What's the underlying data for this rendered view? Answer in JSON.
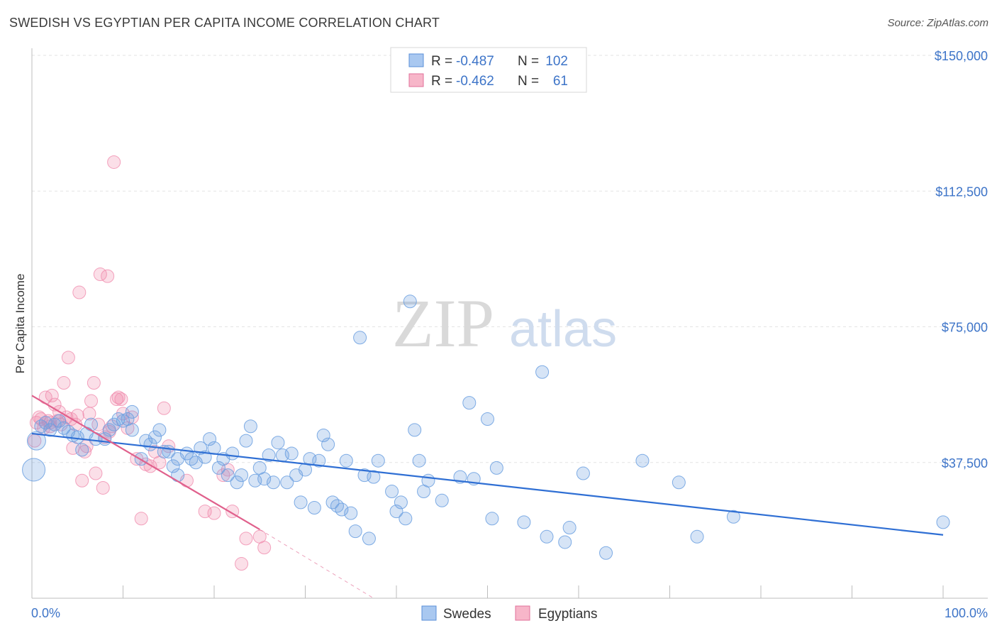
{
  "header": {
    "title": "SWEDISH VS EGYPTIAN PER CAPITA INCOME CORRELATION CHART",
    "source": "Source: ZipAtlas.com"
  },
  "watermark": {
    "zip": "ZIP",
    "atlas": "atlas"
  },
  "legend": {
    "rows": [
      {
        "r_label": "R = ",
        "r_value": "-0.487",
        "n_label": "N = ",
        "n_value": "102",
        "color": "#a9c8f0",
        "stroke": "#5a8fd8"
      },
      {
        "r_label": "R = ",
        "r_value": "-0.462",
        "n_label": "N = ",
        "n_value": "61",
        "color": "#f7b6c9",
        "stroke": "#e0709a"
      }
    ]
  },
  "colors": {
    "swedes": "#6a9fe0",
    "swedes_line": "#2f6fd4",
    "egyptians": "#f08cae",
    "egyptians_line": "#e0608c",
    "grid": "#e3e3e3",
    "axis_text": "#3d74c8"
  },
  "chart_data": {
    "type": "scatter",
    "title": "SWEDISH VS EGYPTIAN PER CAPITA INCOME CORRELATION CHART",
    "xlabel": "",
    "ylabel": "Per Capita Income",
    "xlim": [
      0,
      100
    ],
    "ylim": [
      0,
      150000
    ],
    "x_tick_labels": [
      "0.0%",
      "100.0%"
    ],
    "y_ticks": [
      37500,
      75000,
      112500,
      150000
    ],
    "y_tick_labels": [
      "$37,500",
      "$75,000",
      "$112,500",
      "$150,000"
    ],
    "grid": true,
    "legend_position": "top-center",
    "series": [
      {
        "name": "Swedes",
        "r": -0.487,
        "n": 102,
        "trend": {
          "x": [
            0,
            100
          ],
          "y": [
            45500,
            17500
          ]
        },
        "points": [
          [
            0.2,
            35500
          ],
          [
            0.5,
            43500
          ],
          [
            1,
            47500
          ],
          [
            1.5,
            48500
          ],
          [
            2,
            46500
          ],
          [
            2.5,
            48000
          ],
          [
            3,
            49000
          ],
          [
            3.5,
            47000
          ],
          [
            4,
            46000
          ],
          [
            4.5,
            45000
          ],
          [
            5,
            44500
          ],
          [
            5.5,
            41000
          ],
          [
            6,
            45500
          ],
          [
            6.5,
            48000
          ],
          [
            7,
            44000
          ],
          [
            8,
            44000
          ],
          [
            8.5,
            46500
          ],
          [
            9,
            48000
          ],
          [
            9.5,
            49500
          ],
          [
            10,
            49000
          ],
          [
            10.5,
            49500
          ],
          [
            11,
            51500
          ],
          [
            11,
            46500
          ],
          [
            12,
            38500
          ],
          [
            12.5,
            43500
          ],
          [
            13,
            42500
          ],
          [
            13.5,
            44500
          ],
          [
            14,
            46500
          ],
          [
            14.5,
            40500
          ],
          [
            15,
            40500
          ],
          [
            15.5,
            36500
          ],
          [
            16,
            34000
          ],
          [
            16,
            38500
          ],
          [
            17,
            40000
          ],
          [
            17.5,
            38500
          ],
          [
            18,
            37500
          ],
          [
            18.5,
            41500
          ],
          [
            19,
            39000
          ],
          [
            19.5,
            44000
          ],
          [
            20,
            41500
          ],
          [
            20.5,
            36000
          ],
          [
            21,
            38500
          ],
          [
            21.5,
            34000
          ],
          [
            22,
            40000
          ],
          [
            22.5,
            32000
          ],
          [
            23,
            34000
          ],
          [
            23.5,
            43500
          ],
          [
            24,
            47500
          ],
          [
            24.5,
            32500
          ],
          [
            25,
            36000
          ],
          [
            25.5,
            33000
          ],
          [
            26,
            39500
          ],
          [
            26.5,
            32000
          ],
          [
            27,
            43000
          ],
          [
            27.5,
            39500
          ],
          [
            28,
            32000
          ],
          [
            28.5,
            40000
          ],
          [
            29,
            34000
          ],
          [
            29.5,
            26500
          ],
          [
            30,
            35500
          ],
          [
            30.5,
            38500
          ],
          [
            31,
            25000
          ],
          [
            31.5,
            38000
          ],
          [
            32,
            45000
          ],
          [
            32.5,
            42500
          ],
          [
            33,
            26500
          ],
          [
            33.5,
            25500
          ],
          [
            34,
            24500
          ],
          [
            34.5,
            38000
          ],
          [
            35,
            23500
          ],
          [
            35.5,
            18500
          ],
          [
            36,
            72000
          ],
          [
            36.5,
            34000
          ],
          [
            37,
            16500
          ],
          [
            37.5,
            33500
          ],
          [
            38,
            38000
          ],
          [
            39.5,
            29500
          ],
          [
            40,
            24000
          ],
          [
            40.5,
            26500
          ],
          [
            41,
            22000
          ],
          [
            41.5,
            82000
          ],
          [
            42,
            46500
          ],
          [
            42.5,
            38000
          ],
          [
            43,
            29500
          ],
          [
            43.5,
            32500
          ],
          [
            45,
            27000
          ],
          [
            47,
            33500
          ],
          [
            48,
            54000
          ],
          [
            48.5,
            33000
          ],
          [
            50,
            49500
          ],
          [
            50.5,
            22000
          ],
          [
            51,
            36000
          ],
          [
            54,
            21000
          ],
          [
            56,
            62500
          ],
          [
            56.5,
            17000
          ],
          [
            58.5,
            15500
          ],
          [
            59,
            19500
          ],
          [
            60.5,
            34500
          ],
          [
            63,
            12500
          ],
          [
            67,
            38000
          ],
          [
            71,
            32000
          ],
          [
            73,
            17000
          ],
          [
            77,
            22500
          ],
          [
            100,
            21000
          ]
        ]
      },
      {
        "name": "Egyptians",
        "r": -0.462,
        "n": 61,
        "trend": {
          "x": [
            0,
            25
          ],
          "y": [
            56000,
            19000
          ]
        },
        "trend_dashed": {
          "x": [
            25,
            37.5
          ],
          "y": [
            19000,
            0
          ]
        },
        "points": [
          [
            0.3,
            43500
          ],
          [
            0.8,
            50000
          ],
          [
            1,
            49500
          ],
          [
            1.3,
            47000
          ],
          [
            1.5,
            55500
          ],
          [
            1.8,
            49000
          ],
          [
            2,
            48500
          ],
          [
            2.2,
            56000
          ],
          [
            2.5,
            53500
          ],
          [
            2.8,
            49000
          ],
          [
            3,
            51500
          ],
          [
            3.2,
            48000
          ],
          [
            3.5,
            59500
          ],
          [
            3.8,
            50000
          ],
          [
            4,
            66500
          ],
          [
            4.3,
            49500
          ],
          [
            4.5,
            41500
          ],
          [
            4.8,
            48000
          ],
          [
            5,
            50500
          ],
          [
            5.2,
            84500
          ],
          [
            5.5,
            32500
          ],
          [
            5.8,
            40500
          ],
          [
            6,
            42000
          ],
          [
            6.3,
            51000
          ],
          [
            6.5,
            54500
          ],
          [
            6.8,
            59500
          ],
          [
            7,
            34500
          ],
          [
            7.3,
            48000
          ],
          [
            7.5,
            89500
          ],
          [
            7.8,
            30500
          ],
          [
            8,
            44500
          ],
          [
            8.3,
            89000
          ],
          [
            8.5,
            46000
          ],
          [
            8.8,
            47500
          ],
          [
            9,
            120500
          ],
          [
            9.3,
            55000
          ],
          [
            9.5,
            55500
          ],
          [
            9.8,
            55000
          ],
          [
            10,
            51000
          ],
          [
            10.5,
            47000
          ],
          [
            11,
            50000
          ],
          [
            11.5,
            38500
          ],
          [
            12,
            22000
          ],
          [
            12.5,
            37000
          ],
          [
            13,
            36500
          ],
          [
            13.5,
            40500
          ],
          [
            14,
            37500
          ],
          [
            14.5,
            52500
          ],
          [
            15,
            42000
          ],
          [
            17,
            32500
          ],
          [
            19,
            24000
          ],
          [
            20,
            23500
          ],
          [
            21,
            34000
          ],
          [
            21.5,
            35500
          ],
          [
            22,
            24000
          ],
          [
            23,
            9500
          ],
          [
            23.5,
            16500
          ],
          [
            25,
            17000
          ],
          [
            25.5,
            14000
          ],
          [
            0.5,
            48500
          ],
          [
            2,
            47500
          ]
        ]
      }
    ]
  },
  "bottom_legend": {
    "swedes": "Swedes",
    "egyptians": "Egyptians"
  }
}
